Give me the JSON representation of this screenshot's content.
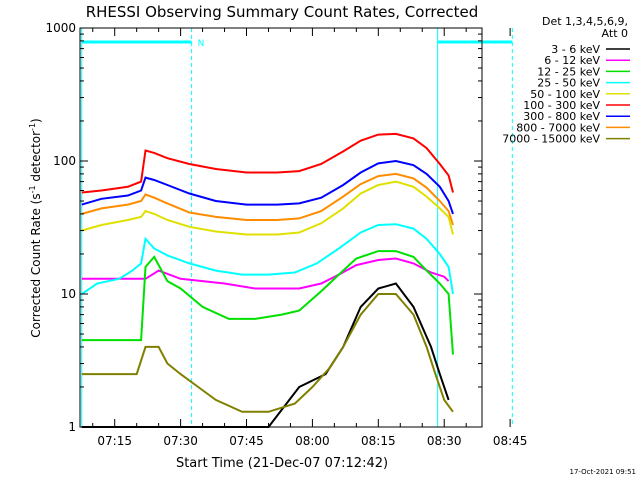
{
  "chart_data": {
    "type": "line",
    "title": "RHESSI Observing Summary Count Rates, Corrected",
    "xlabel": "Start Time (21-Dec-07 07:12:42)",
    "ylabel_main": "Corrected Count Rate (s",
    "ylabel_exp1": "-1",
    "ylabel_mid": " detector",
    "ylabel_exp2": "-1",
    "ylabel_end": ")",
    "yscale": "log",
    "ylim": [
      1,
      1000
    ],
    "xlim_minutes": [
      7.1,
      98.6
    ],
    "x_ticks": [
      {
        "m": 15,
        "label": "07:15"
      },
      {
        "m": 30,
        "label": "07:30"
      },
      {
        "m": 45,
        "label": "07:45"
      },
      {
        "m": 60,
        "label": "08:00"
      },
      {
        "m": 75,
        "label": "08:15"
      },
      {
        "m": 90,
        "label": "08:30"
      },
      {
        "m": 105,
        "label": "08:45"
      }
    ],
    "y_ticks": [
      {
        "v": 1,
        "label": "1"
      },
      {
        "v": 10,
        "label": "10"
      },
      {
        "v": 100,
        "label": "100"
      },
      {
        "v": 1000,
        "label": "1000"
      }
    ],
    "legend_header": [
      "Det 1,3,4,5,6,9,",
      "Att 0"
    ],
    "legend_position": "right",
    "night_boundaries_minutes": [
      7.5,
      32.5,
      88.5,
      105.5
    ],
    "night_label": "N",
    "series": [
      {
        "name": "3 - 6 keV",
        "color": "#000000",
        "points": [
          [
            7.5,
            1
          ],
          [
            30,
            1
          ],
          [
            40,
            1
          ],
          [
            50,
            1
          ],
          [
            57,
            2
          ],
          [
            63,
            2.5
          ],
          [
            67,
            4
          ],
          [
            71,
            8
          ],
          [
            75,
            11
          ],
          [
            79,
            12
          ],
          [
            83,
            8
          ],
          [
            87,
            4
          ],
          [
            89,
            2.5
          ],
          [
            91,
            1.6
          ],
          [
            105,
            1.6
          ]
        ]
      },
      {
        "name": "6 - 12 keV",
        "color": "#ff00ff",
        "points": [
          [
            7.5,
            13
          ],
          [
            22,
            13
          ],
          [
            25,
            15
          ],
          [
            30,
            13
          ],
          [
            40,
            12
          ],
          [
            47,
            11
          ],
          [
            53,
            11
          ],
          [
            57,
            11
          ],
          [
            62,
            12
          ],
          [
            66,
            14
          ],
          [
            70,
            16.5
          ],
          [
            75,
            18
          ],
          [
            79,
            18.5
          ],
          [
            83,
            17
          ],
          [
            87,
            14.5
          ],
          [
            90,
            13.5
          ],
          [
            91,
            12.5
          ]
        ]
      },
      {
        "name": "12 - 25 keV",
        "color": "#00e000",
        "points": [
          [
            7.5,
            4.5
          ],
          [
            21,
            4.5
          ],
          [
            22,
            16
          ],
          [
            24,
            19
          ],
          [
            27,
            12.5
          ],
          [
            30,
            11
          ],
          [
            35,
            8
          ],
          [
            41,
            6.5
          ],
          [
            47,
            6.5
          ],
          [
            53,
            7
          ],
          [
            57,
            7.5
          ],
          [
            62,
            10.5
          ],
          [
            66,
            14
          ],
          [
            70,
            18.5
          ],
          [
            75,
            21
          ],
          [
            79,
            21
          ],
          [
            83,
            19
          ],
          [
            86,
            15
          ],
          [
            89,
            12
          ],
          [
            91,
            10
          ],
          [
            92,
            3.5
          ],
          [
            105,
            3.5
          ]
        ]
      },
      {
        "name": "25 - 50 keV",
        "color": "#00ffff",
        "points": [
          [
            7.5,
            10
          ],
          [
            11,
            12
          ],
          [
            16,
            13
          ],
          [
            19,
            15
          ],
          [
            21,
            17
          ],
          [
            22,
            26
          ],
          [
            24,
            22
          ],
          [
            27,
            19.5
          ],
          [
            32,
            17
          ],
          [
            38,
            15
          ],
          [
            44,
            14
          ],
          [
            50,
            14
          ],
          [
            56,
            14.5
          ],
          [
            61,
            17
          ],
          [
            66,
            22
          ],
          [
            71,
            29
          ],
          [
            75,
            33
          ],
          [
            79,
            33.5
          ],
          [
            83,
            31
          ],
          [
            86,
            26
          ],
          [
            89,
            20
          ],
          [
            91,
            16
          ],
          [
            92,
            10
          ],
          [
            105,
            10
          ]
        ]
      },
      {
        "name": "50 - 100 keV",
        "color": "#e0e000",
        "points": [
          [
            7.5,
            30
          ],
          [
            12,
            33
          ],
          [
            18,
            36
          ],
          [
            21,
            38
          ],
          [
            22,
            42
          ],
          [
            24,
            40
          ],
          [
            27,
            36
          ],
          [
            32,
            32
          ],
          [
            38,
            29.5
          ],
          [
            45,
            28
          ],
          [
            52,
            28
          ],
          [
            57,
            29
          ],
          [
            62,
            34
          ],
          [
            67,
            44
          ],
          [
            71,
            57
          ],
          [
            75,
            66
          ],
          [
            79,
            70
          ],
          [
            83,
            64
          ],
          [
            86,
            54
          ],
          [
            89,
            44
          ],
          [
            91,
            38
          ],
          [
            92,
            28
          ],
          [
            105,
            28
          ]
        ]
      },
      {
        "name": "100 - 300 keV",
        "color": "#ff0000",
        "points": [
          [
            7.5,
            58
          ],
          [
            12,
            60
          ],
          [
            18,
            64
          ],
          [
            21,
            70
          ],
          [
            22,
            120
          ],
          [
            24,
            115
          ],
          [
            27,
            105
          ],
          [
            32,
            95
          ],
          [
            38,
            87
          ],
          [
            45,
            82
          ],
          [
            52,
            82
          ],
          [
            57,
            84
          ],
          [
            62,
            95
          ],
          [
            67,
            118
          ],
          [
            71,
            142
          ],
          [
            75,
            158
          ],
          [
            79,
            160
          ],
          [
            83,
            148
          ],
          [
            86,
            125
          ],
          [
            89,
            95
          ],
          [
            91,
            78
          ],
          [
            92,
            58
          ],
          [
            105,
            58
          ]
        ]
      },
      {
        "name": "300 - 800 keV",
        "color": "#0000ff",
        "points": [
          [
            7.5,
            47
          ],
          [
            12,
            52
          ],
          [
            18,
            55
          ],
          [
            21,
            60
          ],
          [
            22,
            75
          ],
          [
            24,
            72
          ],
          [
            27,
            66
          ],
          [
            32,
            57
          ],
          [
            38,
            50
          ],
          [
            45,
            47
          ],
          [
            52,
            47
          ],
          [
            57,
            48
          ],
          [
            62,
            53
          ],
          [
            67,
            66
          ],
          [
            71,
            82
          ],
          [
            75,
            96
          ],
          [
            79,
            100
          ],
          [
            83,
            93
          ],
          [
            86,
            80
          ],
          [
            89,
            64
          ],
          [
            91,
            50
          ],
          [
            92,
            40
          ],
          [
            105,
            40
          ]
        ]
      },
      {
        "name": "800 - 7000 keV",
        "color": "#ff8c00",
        "points": [
          [
            7.5,
            40
          ],
          [
            12,
            44
          ],
          [
            18,
            47
          ],
          [
            21,
            50
          ],
          [
            22,
            56
          ],
          [
            24,
            53
          ],
          [
            27,
            48
          ],
          [
            32,
            41
          ],
          [
            38,
            38
          ],
          [
            45,
            36
          ],
          [
            52,
            36
          ],
          [
            57,
            37
          ],
          [
            62,
            42
          ],
          [
            67,
            54
          ],
          [
            71,
            67
          ],
          [
            75,
            77
          ],
          [
            79,
            80
          ],
          [
            83,
            74
          ],
          [
            86,
            63
          ],
          [
            89,
            50
          ],
          [
            91,
            42
          ],
          [
            92,
            33
          ],
          [
            105,
            33
          ]
        ]
      },
      {
        "name": "7000 - 15000 keV",
        "color": "#808000",
        "points": [
          [
            7.5,
            2.5
          ],
          [
            20,
            2.5
          ],
          [
            22,
            4
          ],
          [
            25,
            4
          ],
          [
            27,
            3
          ],
          [
            30,
            2.5
          ],
          [
            34,
            2
          ],
          [
            38,
            1.6
          ],
          [
            44,
            1.3
          ],
          [
            50,
            1.3
          ],
          [
            56,
            1.5
          ],
          [
            60,
            2
          ],
          [
            64,
            2.8
          ],
          [
            67,
            4
          ],
          [
            71,
            7
          ],
          [
            75,
            10
          ],
          [
            79,
            10
          ],
          [
            83,
            7
          ],
          [
            86,
            4
          ],
          [
            88,
            2.5
          ],
          [
            90,
            1.6
          ],
          [
            92,
            1.3
          ],
          [
            105,
            1.3
          ]
        ]
      }
    ]
  },
  "footer": {
    "timestamp": "17-Oct-2021 09:51"
  }
}
